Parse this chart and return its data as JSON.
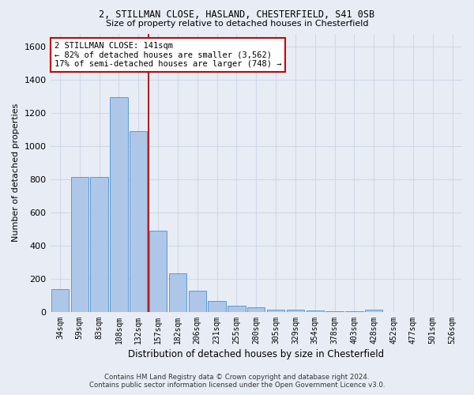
{
  "title1": "2, STILLMAN CLOSE, HASLAND, CHESTERFIELD, S41 0SB",
  "title2": "Size of property relative to detached houses in Chesterfield",
  "xlabel": "Distribution of detached houses by size in Chesterfield",
  "ylabel": "Number of detached properties",
  "footer1": "Contains HM Land Registry data © Crown copyright and database right 2024.",
  "footer2": "Contains public sector information licensed under the Open Government Licence v3.0.",
  "categories": [
    "34sqm",
    "59sqm",
    "83sqm",
    "108sqm",
    "132sqm",
    "157sqm",
    "182sqm",
    "206sqm",
    "231sqm",
    "255sqm",
    "280sqm",
    "305sqm",
    "329sqm",
    "354sqm",
    "378sqm",
    "403sqm",
    "428sqm",
    "452sqm",
    "477sqm",
    "501sqm",
    "526sqm"
  ],
  "values": [
    140,
    815,
    815,
    1295,
    1090,
    490,
    235,
    130,
    65,
    38,
    28,
    15,
    13,
    8,
    5,
    3,
    15,
    2,
    1,
    1,
    0
  ],
  "bar_color": "#aec6e8",
  "bar_edge_color": "#5b9bd5",
  "grid_color": "#d0d8e8",
  "background_color": "#e8edf5",
  "vline_x": 4.5,
  "vline_color": "#b22222",
  "annotation_line1": "2 STILLMAN CLOSE: 141sqm",
  "annotation_line2": "← 82% of detached houses are smaller (3,562)",
  "annotation_line3": "17% of semi-detached houses are larger (748) →",
  "annotation_box_color": "#ffffff",
  "annotation_box_edge": "#cc0000",
  "ylim": [
    0,
    1680
  ],
  "yticks": [
    0,
    200,
    400,
    600,
    800,
    1000,
    1200,
    1400,
    1600
  ]
}
